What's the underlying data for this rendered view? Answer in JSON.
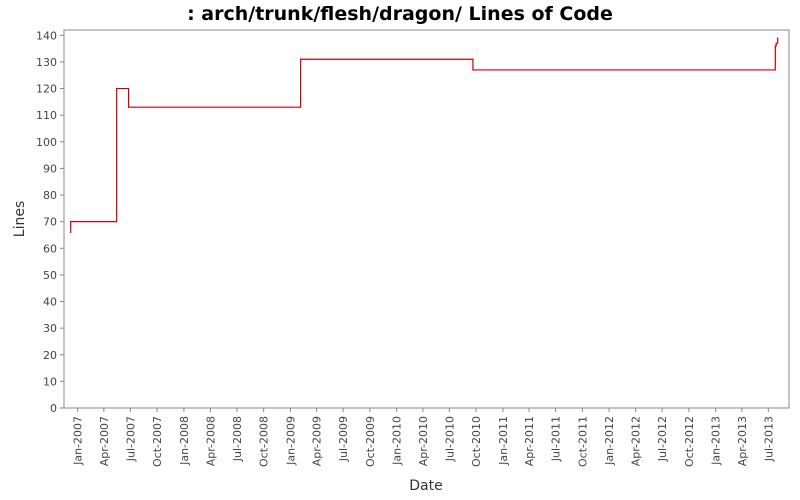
{
  "chart_data": {
    "type": "line",
    "title": ": arch/trunk/flesh/dragon/ Lines of Code",
    "xlabel": "Date",
    "ylabel": "Lines",
    "ylim": [
      0,
      142
    ],
    "xlim": [
      "2006-11-15",
      "2013-09-10"
    ],
    "y_ticks": [
      0,
      10,
      20,
      30,
      40,
      50,
      60,
      70,
      80,
      90,
      100,
      110,
      120,
      130,
      140
    ],
    "x_ticks": [
      "Jan-2007",
      "Apr-2007",
      "Jul-2007",
      "Oct-2007",
      "Jan-2008",
      "Apr-2008",
      "Jul-2008",
      "Oct-2008",
      "Jan-2009",
      "Apr-2009",
      "Jul-2009",
      "Oct-2009",
      "Jan-2010",
      "Apr-2010",
      "Jul-2010",
      "Oct-2010",
      "Jan-2011",
      "Apr-2011",
      "Jul-2011",
      "Oct-2011",
      "Jan-2012",
      "Apr-2012",
      "Jul-2012",
      "Oct-2012",
      "Jan-2013",
      "Apr-2013",
      "Jul-2013"
    ],
    "x_tick_dates": [
      "2007-01-01",
      "2007-04-01",
      "2007-07-01",
      "2007-10-01",
      "2008-01-01",
      "2008-04-01",
      "2008-07-01",
      "2008-10-01",
      "2009-01-01",
      "2009-04-01",
      "2009-07-01",
      "2009-10-01",
      "2010-01-01",
      "2010-04-01",
      "2010-07-01",
      "2010-10-01",
      "2011-01-01",
      "2011-04-01",
      "2011-07-01",
      "2011-10-01",
      "2012-01-01",
      "2012-04-01",
      "2012-07-01",
      "2012-10-01",
      "2013-01-01",
      "2013-04-01",
      "2013-07-01"
    ],
    "step": true,
    "grid": false,
    "legend": "none",
    "series": [
      {
        "color": "#cc0000",
        "points": [
          [
            "2006-12-07",
            66
          ],
          [
            "2006-12-08",
            70
          ],
          [
            "2007-05-15",
            120
          ],
          [
            "2007-06-25",
            113
          ],
          [
            "2009-02-05",
            131
          ],
          [
            "2010-09-20",
            127
          ],
          [
            "2013-07-25",
            136
          ],
          [
            "2013-07-28",
            137
          ],
          [
            "2013-08-02",
            139
          ]
        ]
      }
    ]
  }
}
